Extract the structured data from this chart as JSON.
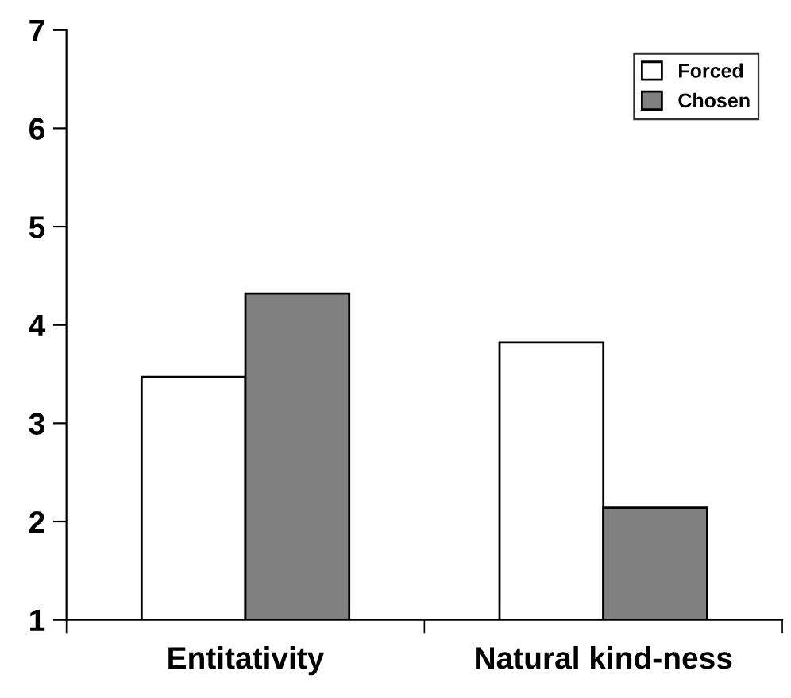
{
  "chart_data": {
    "type": "bar",
    "categories": [
      "Entitativity",
      "Natural kind-ness"
    ],
    "series": [
      {
        "name": "Forced",
        "color": "#ffffff",
        "values": [
          3.47,
          3.82
        ]
      },
      {
        "name": "Chosen",
        "color": "#808080",
        "values": [
          4.32,
          2.14
        ]
      }
    ],
    "ylim": [
      1,
      7
    ],
    "yticks": [
      1,
      2,
      3,
      4,
      5,
      6,
      7
    ],
    "grid": false,
    "legend": "top right"
  }
}
